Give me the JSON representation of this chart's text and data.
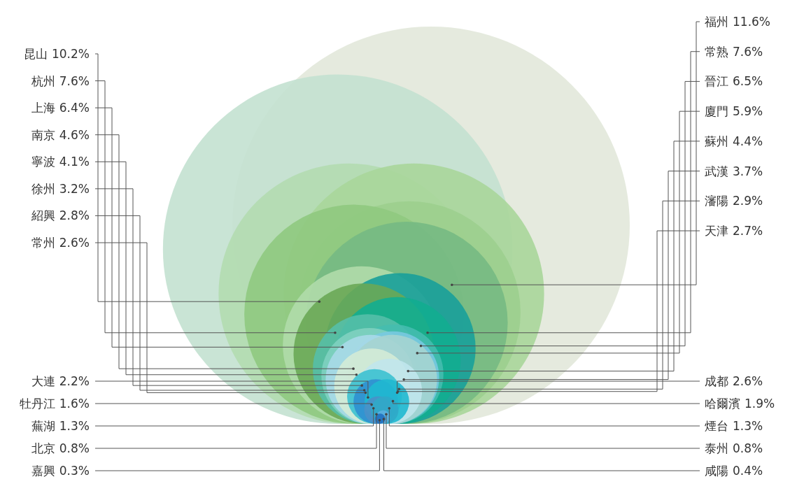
{
  "chart_data": {
    "type": "other",
    "categories": [
      "昆山",
      "杭州",
      "上海",
      "南京",
      "寧波",
      "徐州",
      "紹興",
      "常州",
      "大連",
      "牡丹江",
      "蕪湖",
      "北京",
      "嘉興",
      "福州",
      "常熟",
      "晉江",
      "廈門",
      "蘇州",
      "武漢",
      "瀋陽",
      "天津",
      "成都",
      "哈爾濱",
      "煙台",
      "泰州",
      "咸陽"
    ],
    "values": [
      10.2,
      7.6,
      6.4,
      4.6,
      4.1,
      3.2,
      2.8,
      2.6,
      2.2,
      1.6,
      1.3,
      0.8,
      0.3,
      11.6,
      7.6,
      6.5,
      5.9,
      4.4,
      3.7,
      2.9,
      2.7,
      2.6,
      1.9,
      1.3,
      0.8,
      0.4
    ],
    "value_labels": [
      "10.2%",
      "7.6%",
      "6.4%",
      "4.6%",
      "4.1%",
      "3.2%",
      "2.8%",
      "2.6%",
      "2.2%",
      "1.6%",
      "1.3%",
      "0.8%",
      "0.3%",
      "11.6%",
      "7.6%",
      "6.5%",
      "5.9%",
      "4.4%",
      "3.7%",
      "2.9%",
      "2.7%",
      "2.6%",
      "1.9%",
      "1.3%",
      "0.8%",
      "0.4%"
    ],
    "colors": [
      "#c3e1d0",
      "#b3dbb0",
      "#8fc97f",
      "#b0dcaa",
      "#6aa957",
      "#55bfa8",
      "#7fd0c0",
      "#a8d9e8",
      "#d4ebd6",
      "#3cc1d0",
      "#2f8fd0",
      "#4a90c8",
      "#2070c0",
      "#e2e8da",
      "#a8d69a",
      "#9ccf8e",
      "#76b983",
      "#18a09a",
      "#12ad90",
      "#45bcaf",
      "#78c9e0",
      "#a5d4d0",
      "#c0e6ec",
      "#20b8d0",
      "#30a8c8",
      "#5bb0e0"
    ]
  }
}
